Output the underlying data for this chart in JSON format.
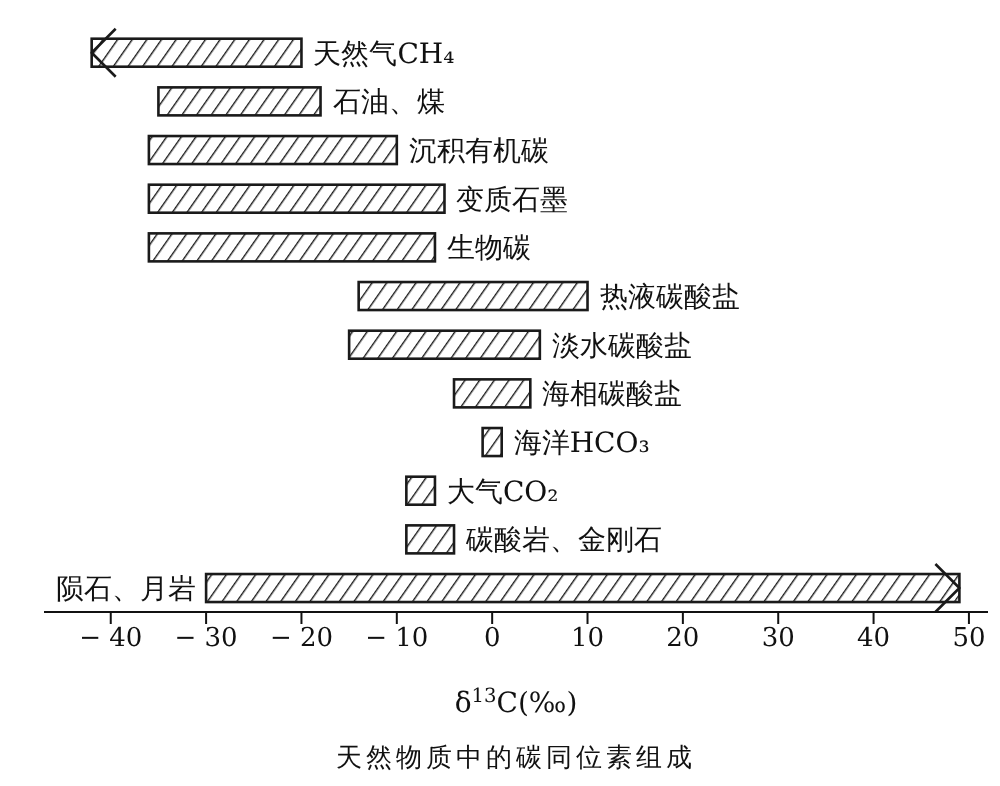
{
  "chart_data": {
    "type": "bar",
    "orientation": "horizontal",
    "title": "天然物质中的碳同位素组成",
    "xlabel": "δ$^{13}$C(‰)",
    "categories": [
      "天然气CH₄",
      "石油、煤",
      "沉积有机碳",
      "变质石墨",
      "生物碳",
      "热液碳酸盐",
      "淡水碳酸盐",
      "海相碳酸盐",
      "海洋HCO₃",
      "大气CO₂",
      "碳酸岩、金刚石",
      "陨石、月岩"
    ],
    "base": [
      -42,
      -35,
      -36,
      -36,
      -36,
      -14,
      -15,
      -4,
      -1,
      -9,
      -9,
      -30
    ],
    "values": [
      22,
      17,
      26,
      31,
      30,
      24,
      20,
      8,
      2,
      3,
      5,
      79
    ],
    "color": "#1a1a1a",
    "xlim": [
      -47,
      52
    ],
    "xticks": [
      -40,
      -30,
      -20,
      -10,
      0,
      10,
      20,
      30,
      40,
      50
    ]
  }
}
